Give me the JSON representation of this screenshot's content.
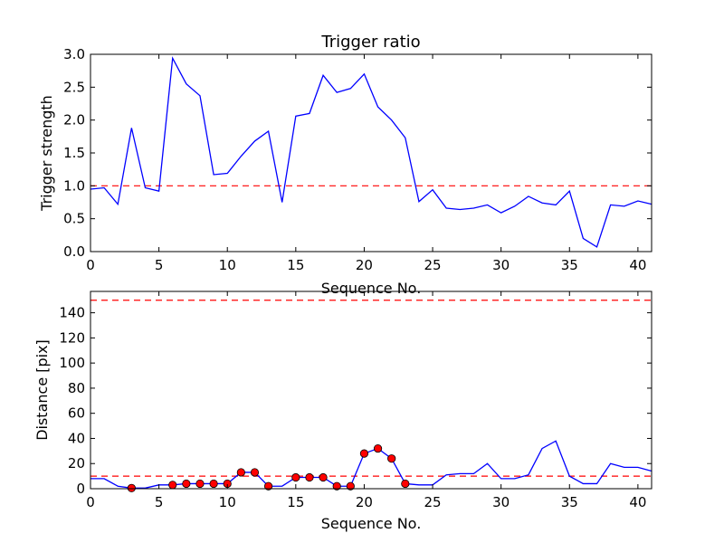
{
  "chart_data": [
    {
      "type": "line",
      "title": "Trigger ratio",
      "xlabel": "Sequence No.",
      "ylabel": "Trigger strength",
      "xlim": [
        0,
        41
      ],
      "ylim": [
        0,
        3.0
      ],
      "xticks": [
        0,
        5,
        10,
        15,
        20,
        25,
        30,
        35,
        40
      ],
      "xtick_labels": [
        "0",
        "5",
        "10",
        "15",
        "20",
        "25",
        "30",
        "35",
        "40"
      ],
      "yticks": [
        0,
        0.5,
        1.0,
        1.5,
        2.0,
        2.5,
        3.0
      ],
      "ytick_labels": [
        "0.0",
        "0.5",
        "1.0",
        "1.5",
        "2.0",
        "2.5",
        "3.0"
      ],
      "series": [
        {
          "name": "trigger strength",
          "color": "#0000ff",
          "x": [
            0,
            1,
            2,
            3,
            4,
            5,
            6,
            7,
            8,
            9,
            10,
            11,
            12,
            13,
            14,
            15,
            16,
            17,
            18,
            19,
            20,
            21,
            22,
            23,
            24,
            25,
            26,
            27,
            28,
            29,
            30,
            31,
            32,
            33,
            34,
            35,
            36,
            37,
            38,
            39,
            40,
            41
          ],
          "values": [
            0.95,
            0.97,
            0.72,
            1.88,
            0.97,
            0.92,
            2.94,
            2.55,
            2.37,
            1.17,
            1.19,
            1.45,
            1.68,
            1.83,
            0.75,
            2.06,
            2.1,
            2.68,
            2.42,
            2.48,
            2.7,
            2.2,
            2.0,
            1.73,
            0.76,
            0.94,
            0.66,
            0.64,
            0.66,
            0.71,
            0.59,
            0.69,
            0.84,
            0.74,
            0.71,
            0.92,
            0.2,
            0.07,
            0.71,
            0.69,
            0.77,
            0.72
          ]
        }
      ],
      "reference_lines": [
        {
          "y": 1.0,
          "color": "#ff0000",
          "style": "dashed"
        }
      ]
    },
    {
      "type": "line",
      "title": "",
      "xlabel": "Sequence No.",
      "ylabel": "Distance [pix]",
      "xlim": [
        0,
        41
      ],
      "ylim": [
        0,
        157
      ],
      "xticks": [
        0,
        5,
        10,
        15,
        20,
        25,
        30,
        35,
        40
      ],
      "xtick_labels": [
        "0",
        "5",
        "10",
        "15",
        "20",
        "25",
        "30",
        "35",
        "40"
      ],
      "yticks": [
        0,
        20,
        40,
        60,
        80,
        100,
        120,
        140
      ],
      "ytick_labels": [
        "0",
        "20",
        "40",
        "60",
        "80",
        "100",
        "120",
        "140"
      ],
      "series": [
        {
          "name": "distance",
          "color": "#0000ff",
          "x": [
            0,
            1,
            2,
            3,
            4,
            5,
            6,
            7,
            8,
            9,
            10,
            11,
            12,
            13,
            14,
            15,
            16,
            17,
            18,
            19,
            20,
            21,
            22,
            23,
            24,
            25,
            26,
            27,
            28,
            29,
            30,
            31,
            32,
            33,
            34,
            35,
            36,
            37,
            38,
            39,
            40,
            41
          ],
          "values": [
            8,
            8,
            2,
            0.5,
            0.5,
            3,
            3,
            4,
            4,
            4,
            4,
            13,
            13,
            2,
            2,
            9,
            9,
            9,
            2,
            2,
            28,
            32,
            24,
            4,
            3,
            3,
            11,
            12,
            12,
            20,
            8,
            8,
            11,
            32,
            38,
            10,
            4,
            4,
            20,
            17,
            17,
            14
          ]
        }
      ],
      "markers": {
        "color": "#ff0000",
        "x": [
          3,
          6,
          7,
          8,
          9,
          10,
          11,
          12,
          13,
          15,
          16,
          17,
          18,
          19,
          20,
          21,
          22,
          23
        ],
        "values": [
          0.5,
          3,
          4,
          4,
          4,
          4,
          13,
          13,
          2,
          9,
          9,
          9,
          2,
          2,
          28,
          32,
          24,
          4
        ]
      },
      "reference_lines": [
        {
          "y": 150,
          "color": "#ff0000",
          "style": "dashed"
        },
        {
          "y": 10,
          "color": "#ff0000",
          "style": "dashed"
        }
      ]
    }
  ]
}
